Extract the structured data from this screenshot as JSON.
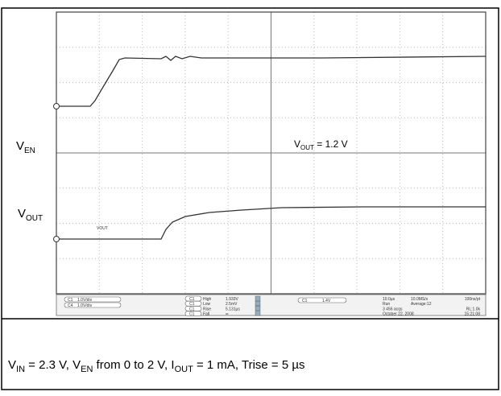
{
  "scope": {
    "labels": {
      "ven": {
        "main": "V",
        "sub": "EN"
      },
      "vout": {
        "main": "V",
        "sub": "OUT"
      },
      "annotation": {
        "main": "V",
        "sub": "OUT",
        "rest": " = 1.2 V"
      },
      "trace_tag": "VOUT"
    },
    "channels": [
      "1.0V/div",
      "1.0V/div"
    ],
    "channel_ids": [
      "C1",
      "C4"
    ],
    "measurements": [
      {
        "ch": "C1",
        "name": "High",
        "value": "1.933V"
      },
      {
        "ch": "C1",
        "name": "Low",
        "value": "2.5mV"
      },
      {
        "ch": "C1",
        "name": "Rise",
        "value": "5.131µs"
      },
      {
        "ch": "C1",
        "name": "Fall",
        "value": "∞"
      }
    ],
    "trigger": {
      "ch": "C1",
      "level": "1.4V"
    },
    "acquisition": [
      [
        "10.0µs",
        "10.0MS/s",
        "100ns/pt"
      ],
      [
        "Run",
        "Average:12",
        ""
      ],
      [
        "3 456 acqs",
        "",
        "RL:1.0k"
      ],
      [
        "October 22, 2008",
        "",
        "15:21:08"
      ]
    ]
  },
  "caption": [
    {
      "text": "V"
    },
    {
      "text": "IN",
      "sub": true
    },
    {
      "text": " = 2.3 V, V"
    },
    {
      "text": "EN",
      "sub": true
    },
    {
      "text": " from 0 to 2 V, I"
    },
    {
      "text": "OUT",
      "sub": true
    },
    {
      "text": " = 1 mA, Trise = 5 µs"
    }
  ]
}
